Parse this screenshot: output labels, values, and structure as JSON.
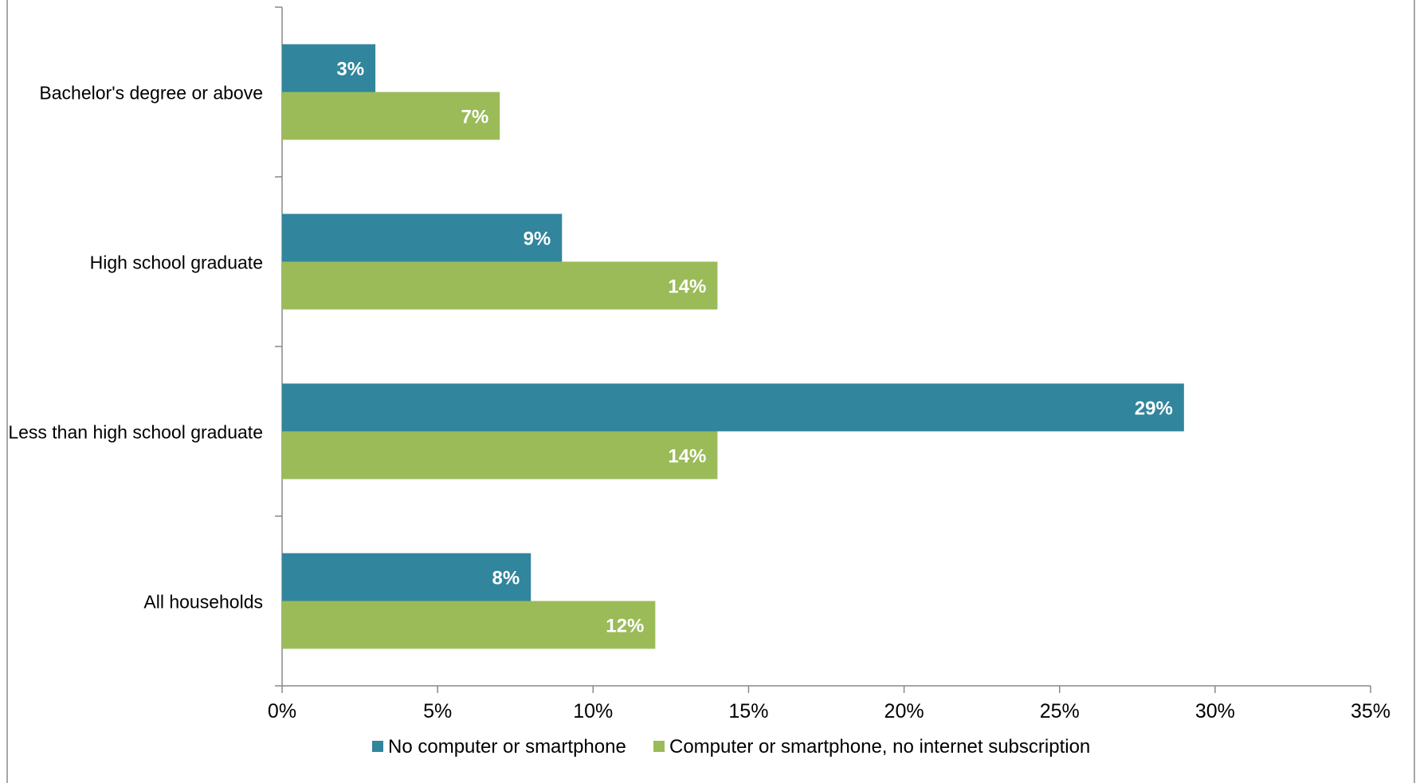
{
  "chart_data": {
    "type": "bar",
    "orientation": "horizontal",
    "categories": [
      "Bachelor's degree or above",
      "High school graduate",
      "Less than high school graduate",
      "All households"
    ],
    "series": [
      {
        "name": "No computer or smartphone",
        "values": [
          3,
          9,
          29,
          8
        ],
        "labels": [
          "3%",
          "9%",
          "29%",
          "8%"
        ],
        "color": "#31859c"
      },
      {
        "name": "Computer or smartphone, no internet subscription",
        "values": [
          7,
          14,
          14,
          12
        ],
        "labels": [
          "7%",
          "14%",
          "14%",
          "12%"
        ],
        "color": "#9bbb59"
      }
    ],
    "xlim": [
      0,
      35
    ],
    "xticks": [
      0,
      5,
      10,
      15,
      20,
      25,
      30,
      35
    ],
    "xtick_labels": [
      "0%",
      "5%",
      "10%",
      "15%",
      "20%",
      "25%",
      "30%",
      "35%"
    ],
    "title": "",
    "xlabel": "",
    "ylabel": "",
    "grid": false,
    "legend_position": "bottom",
    "colors": {
      "axis": "#888888",
      "data_label": "#ffffff",
      "text": "#000000"
    }
  }
}
